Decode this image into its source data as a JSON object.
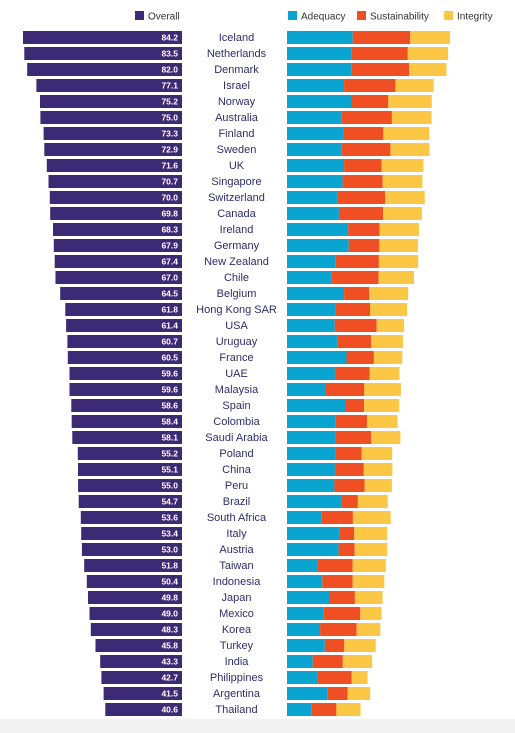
{
  "chart_data": {
    "type": "bar",
    "orientation": "horizontal",
    "legend": {
      "left": [
        {
          "name": "Overall",
          "color": "#3d2a74"
        }
      ],
      "right": [
        {
          "name": "Adequacy",
          "color": "#0aa4d1"
        },
        {
          "name": "Sustainability",
          "color": "#f04f23"
        },
        {
          "name": "Integrity",
          "color": "#fcc745"
        }
      ]
    },
    "categories": [
      "Iceland",
      "Netherlands",
      "Denmark",
      "Israel",
      "Norway",
      "Australia",
      "Finland",
      "Sweden",
      "UK",
      "Singapore",
      "Switzerland",
      "Canada",
      "Ireland",
      "Germany",
      "New Zealand",
      "Chile",
      "Belgium",
      "Hong Kong SAR",
      "USA",
      "Uruguay",
      "France",
      "UAE",
      "Malaysia",
      "Spain",
      "Colombia",
      "Saudi Arabia",
      "Poland",
      "China",
      "Peru",
      "Brazil",
      "South Africa",
      "Italy",
      "Austria",
      "Taiwan",
      "Indonesia",
      "Japan",
      "Mexico",
      "Korea",
      "Turkey",
      "India",
      "Philippines",
      "Argentina",
      "Thailand"
    ],
    "overall": [
      84.2,
      83.5,
      82.0,
      77.1,
      75.2,
      75.0,
      73.3,
      72.9,
      71.6,
      70.7,
      70.0,
      69.8,
      68.3,
      67.9,
      67.4,
      67.0,
      64.5,
      61.8,
      61.4,
      60.7,
      60.5,
      59.6,
      59.6,
      58.6,
      58.4,
      58.1,
      55.2,
      55.1,
      55.0,
      54.7,
      53.6,
      53.4,
      53.0,
      51.8,
      50.4,
      49.8,
      49.0,
      48.3,
      45.8,
      43.3,
      42.7,
      41.5,
      40.6
    ],
    "overall_labels": [
      "84.2",
      "83.5",
      "82.0",
      "77.1",
      "75.2",
      "75.0",
      "73.3",
      "72.9",
      "71.6",
      "70.7",
      "70.0",
      "69.8",
      "68.3",
      "67.9",
      "67.4",
      "67.0",
      "64.5",
      "61.8",
      "61.4",
      "60.7",
      "60.5",
      "59.6",
      "59.6",
      "58.6",
      "58.4",
      "58.1",
      "55.2",
      "55.1",
      "55.0",
      "54.7",
      "53.6",
      "53.4",
      "53.0",
      "51.8",
      "50.4",
      "49.8",
      "49.0",
      "48.3",
      "45.8",
      "43.3",
      "42.7",
      "41.5",
      "40.6"
    ],
    "series": [
      {
        "name": "Adequacy",
        "values": [
          26.6,
          26.2,
          26.2,
          23.1,
          25.9,
          22.0,
          22.7,
          22.0,
          23.1,
          22.5,
          20.5,
          21.0,
          24.8,
          25.0,
          19.5,
          18.2,
          23.1,
          19.8,
          19.3,
          20.4,
          24.1,
          19.4,
          15.6,
          23.5,
          19.7,
          19.6,
          19.6,
          19.4,
          19.2,
          22.1,
          14.1,
          21.2,
          20.9,
          12.2,
          14.3,
          17.0,
          14.7,
          13.4,
          15.3,
          10.4,
          12.3,
          16.3,
          10.0
        ]
      },
      {
        "name": "Sustainability",
        "values": [
          23.3,
          22.7,
          23.2,
          20.8,
          15.1,
          20.5,
          16.3,
          19.9,
          15.2,
          16.2,
          19.2,
          17.9,
          12.7,
          12.4,
          17.7,
          18.9,
          10.2,
          13.8,
          17.0,
          13.6,
          11.1,
          14.0,
          15.7,
          7.7,
          12.7,
          14.4,
          10.6,
          11.7,
          12.2,
          6.6,
          12.6,
          6.0,
          6.5,
          14.4,
          12.3,
          10.5,
          15.0,
          14.8,
          7.9,
          12.2,
          13.9,
          8.2,
          10.0
        ]
      },
      {
        "name": "Integrity",
        "values": [
          16.1,
          16.3,
          15.2,
          15.5,
          17.6,
          16.0,
          18.6,
          15.8,
          16.9,
          16.1,
          16.1,
          15.7,
          15.9,
          15.6,
          15.9,
          14.3,
          15.8,
          15.0,
          11.1,
          12.9,
          11.5,
          12.1,
          14.8,
          14.2,
          12.4,
          11.9,
          12.4,
          11.6,
          11.1,
          12.1,
          15.3,
          13.4,
          13.2,
          13.4,
          12.8,
          11.2,
          8.6,
          9.6,
          12.7,
          11.9,
          6.4,
          9.2,
          9.8
        ]
      }
    ]
  }
}
